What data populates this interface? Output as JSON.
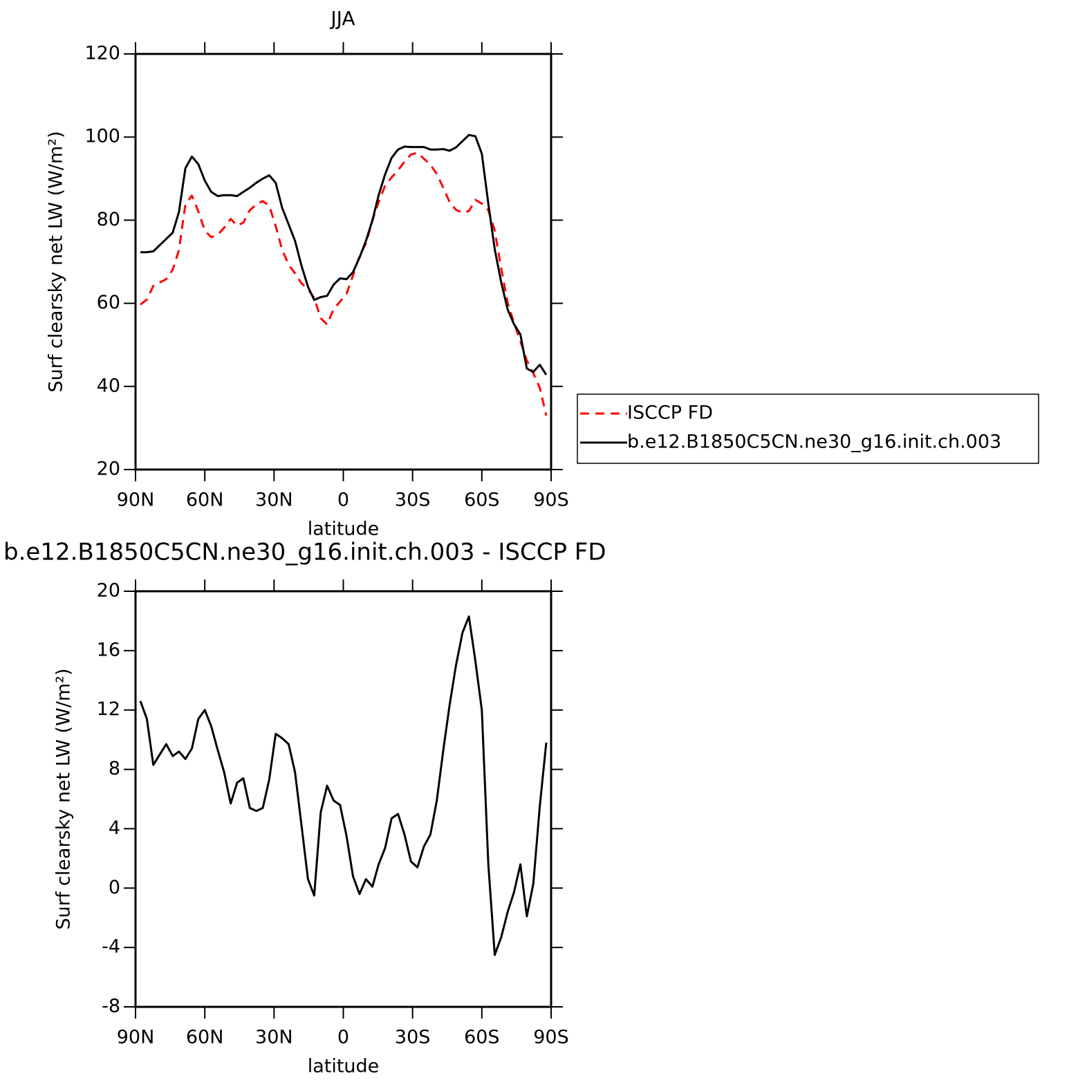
{
  "chart_data": [
    {
      "type": "line",
      "title": "JJA",
      "xlabel": "latitude",
      "ylabel": "Surf clearsky net LW (W/m²)",
      "x": [
        87.9,
        85.1,
        82.3,
        79.5,
        76.7,
        73.9,
        71.2,
        68.4,
        65.6,
        62.8,
        60.0,
        57.2,
        54.4,
        51.6,
        48.8,
        46.0,
        43.3,
        40.5,
        37.7,
        34.9,
        32.1,
        29.3,
        26.5,
        23.7,
        20.9,
        18.1,
        15.3,
        12.6,
        9.8,
        7.0,
        4.2,
        1.4,
        -1.4,
        -4.2,
        -7.0,
        -9.8,
        -12.6,
        -15.3,
        -18.1,
        -20.9,
        -23.7,
        -26.5,
        -29.3,
        -32.1,
        -34.9,
        -37.7,
        -40.5,
        -43.3,
        -46.0,
        -48.8,
        -51.6,
        -54.4,
        -57.2,
        -60.0,
        -62.8,
        -65.6,
        -68.4,
        -71.2,
        -73.9,
        -76.7,
        -79.5,
        -82.3,
        -85.1,
        -87.9
      ],
      "series": [
        {
          "name": "ISCCP FD",
          "color": "#ff0000",
          "linestyle": "dashed",
          "values": [
            59.7,
            60.9,
            64.2,
            65.0,
            65.8,
            68.1,
            72.8,
            83.8,
            85.9,
            82.1,
            77.5,
            75.9,
            76.5,
            78.2,
            80.3,
            78.7,
            79.4,
            82.4,
            83.8,
            84.6,
            83.5,
            78.6,
            72.9,
            69.3,
            67.2,
            64.8,
            63.4,
            61.3,
            56.4,
            54.9,
            58.6,
            60.4,
            62.3,
            66.7,
            71.4,
            74.4,
            79.9,
            84.4,
            88.3,
            90.3,
            92.0,
            94.1,
            95.8,
            96.2,
            94.8,
            93.4,
            91.1,
            87.8,
            84.4,
            82.5,
            81.8,
            82.2,
            84.9,
            84.0,
            82.4,
            77.5,
            68.3,
            60.1,
            55.3,
            50.9,
            46.2,
            43.2,
            39.7,
            33.0
          ]
        },
        {
          "name": "b.e12.B1850C5CN.ne30_g16.init.ch.003",
          "color": "#000000",
          "linestyle": "solid",
          "values": [
            72.3,
            72.3,
            72.5,
            74.0,
            75.5,
            77.0,
            82.0,
            92.5,
            95.3,
            93.5,
            89.5,
            86.8,
            85.8,
            86.0,
            86.0,
            85.8,
            86.8,
            87.8,
            89.0,
            90.0,
            90.8,
            89.0,
            83.0,
            79.0,
            75.0,
            69.0,
            64.0,
            60.8,
            61.5,
            61.8,
            64.5,
            66.0,
            65.8,
            67.5,
            71.0,
            75.0,
            80.0,
            86.0,
            91.0,
            95.0,
            97.0,
            97.7,
            97.6,
            97.6,
            97.6,
            97.0,
            97.0,
            97.1,
            96.7,
            97.5,
            99.0,
            100.5,
            100.2,
            96.0,
            84.0,
            73.0,
            65.0,
            58.5,
            55.0,
            52.5,
            44.3,
            43.5,
            45.2,
            42.8
          ]
        }
      ],
      "xlim": [
        90,
        -90
      ],
      "ylim": [
        20,
        120
      ],
      "xticks": [
        {
          "value": 90,
          "label": "90N"
        },
        {
          "value": 60,
          "label": "60N"
        },
        {
          "value": 30,
          "label": "30N"
        },
        0,
        {
          "value": -30,
          "label": "30S"
        },
        {
          "value": -60,
          "label": "60S"
        },
        {
          "value": -90,
          "label": "90S"
        }
      ],
      "yticks": [
        20,
        40,
        60,
        80,
        100,
        120
      ],
      "legend": "right"
    },
    {
      "type": "line",
      "title": "b.e12.B1850C5CN.ne30_g16.init.ch.003 - ISCCP FD",
      "xlabel": "latitude",
      "ylabel": "Surf clearsky net LW (W/m²)",
      "x": [
        87.9,
        85.1,
        82.3,
        79.5,
        76.7,
        73.9,
        71.2,
        68.4,
        65.6,
        62.8,
        60.0,
        57.2,
        54.4,
        51.6,
        48.8,
        46.0,
        43.3,
        40.5,
        37.7,
        34.9,
        32.1,
        29.3,
        26.5,
        23.7,
        20.9,
        18.1,
        15.3,
        12.6,
        9.8,
        7.0,
        4.2,
        1.4,
        -1.4,
        -4.2,
        -7.0,
        -9.8,
        -12.6,
        -15.3,
        -18.1,
        -20.9,
        -23.7,
        -26.5,
        -29.3,
        -32.1,
        -34.9,
        -37.7,
        -40.5,
        -43.3,
        -46.0,
        -48.8,
        -51.6,
        -54.4,
        -57.2,
        -60.0,
        -62.8,
        -65.6,
        -68.4,
        -71.2,
        -73.9,
        -76.7,
        -79.5,
        -82.3,
        -85.1,
        -87.9
      ],
      "values": [
        12.6,
        11.4,
        8.3,
        9.0,
        9.7,
        8.9,
        9.2,
        8.7,
        9.4,
        11.4,
        12.0,
        10.9,
        9.3,
        7.8,
        5.7,
        7.1,
        7.4,
        5.4,
        5.2,
        5.4,
        7.3,
        10.4,
        10.1,
        9.7,
        7.8,
        4.2,
        0.6,
        -0.5,
        5.1,
        6.9,
        5.9,
        5.6,
        3.5,
        0.8,
        -0.4,
        0.6,
        0.1,
        1.6,
        2.7,
        4.7,
        5.0,
        3.6,
        1.8,
        1.4,
        2.8,
        3.6,
        5.9,
        9.3,
        12.3,
        15.0,
        17.2,
        18.3,
        15.3,
        12.0,
        1.6,
        -4.5,
        -3.3,
        -1.6,
        -0.3,
        1.6,
        -1.9,
        0.3,
        5.5,
        9.8
      ],
      "color": "#000000",
      "xlim": [
        90,
        -90
      ],
      "ylim": [
        -8,
        20
      ],
      "xticks": [
        {
          "value": 90,
          "label": "90N"
        },
        {
          "value": 60,
          "label": "60N"
        },
        {
          "value": 30,
          "label": "30N"
        },
        0,
        {
          "value": -30,
          "label": "30S"
        },
        {
          "value": -60,
          "label": "60S"
        },
        {
          "value": -90,
          "label": "90S"
        }
      ],
      "yticks": [
        -8,
        -4,
        0,
        4,
        8,
        12,
        16,
        20
      ]
    }
  ]
}
